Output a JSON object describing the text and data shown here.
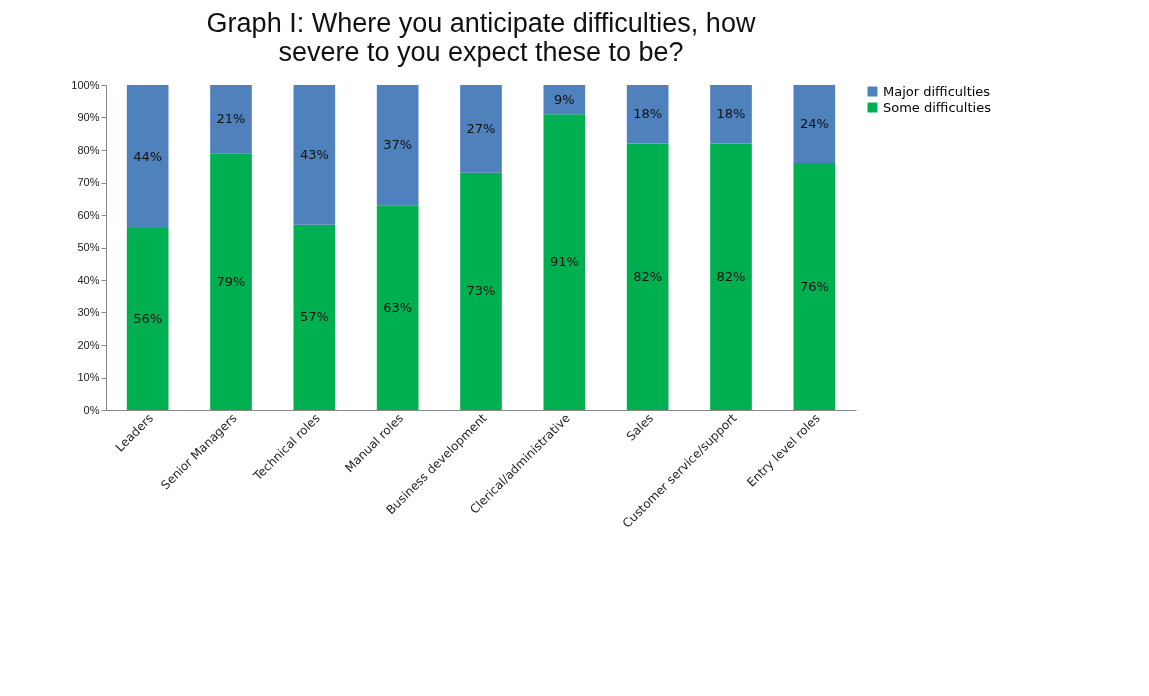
{
  "chart_data": {
    "type": "bar",
    "title": "Graph I: Where you anticipate difficulties, how severe to you expect these to be?",
    "stacked": true,
    "categories": [
      "Leaders",
      "Senior Managers",
      "Technical roles",
      "Manual roles",
      "Business development",
      "Clerical/administrative",
      "Sales",
      "Customer service/support",
      "Entry level roles"
    ],
    "series": [
      {
        "name": "Some difficulties",
        "color": "#00b050",
        "values": [
          56,
          79,
          57,
          63,
          73,
          91,
          82,
          82,
          76
        ],
        "value_labels": [
          "56%",
          "79%",
          "57%",
          "63%",
          "73%",
          "91%",
          "82%",
          "82%",
          "76%"
        ]
      },
      {
        "name": "Major difficulties",
        "color": "#4f81bd",
        "values": [
          44,
          21,
          43,
          37,
          27,
          9,
          18,
          18,
          24
        ],
        "value_labels": [
          "44%",
          "21%",
          "43%",
          "37%",
          "27%",
          "9%",
          "18%",
          "18%",
          "24%"
        ]
      }
    ],
    "ylim": [
      0,
      100
    ],
    "yticks": [
      {
        "value": 0,
        "label": "0%"
      },
      {
        "value": 10,
        "label": "10%"
      },
      {
        "value": 20,
        "label": "20%"
      },
      {
        "value": 30,
        "label": "30%"
      },
      {
        "value": 40,
        "label": "40%"
      },
      {
        "value": 50,
        "label": "50%"
      },
      {
        "value": 60,
        "label": "60%"
      },
      {
        "value": 70,
        "label": "70%"
      },
      {
        "value": 80,
        "label": "80%"
      },
      {
        "value": 90,
        "label": "90%"
      },
      {
        "value": 100,
        "label": "100%"
      }
    ],
    "legend": "right",
    "grid": false
  }
}
